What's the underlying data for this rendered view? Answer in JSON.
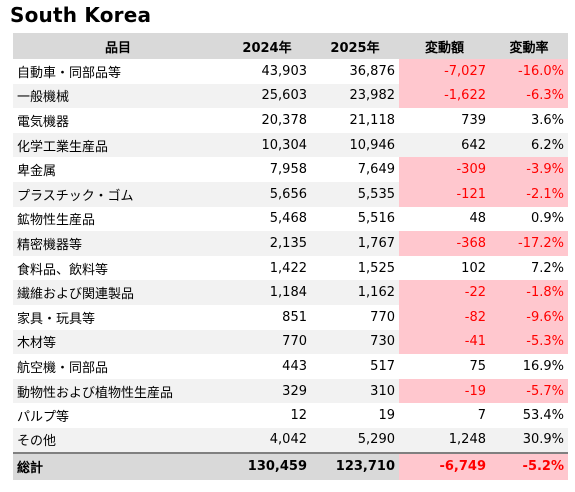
{
  "title": "South Korea",
  "columns": [
    "品目",
    "2024年",
    "2025年",
    "変動額",
    "変動率"
  ],
  "rows": [
    {
      "name": "自動車・同部品等",
      "y2024": "43,903",
      "y2025": "36,876",
      "change": "-7,027",
      "rate": "-16.0%",
      "negative": true
    },
    {
      "name": "一般機械",
      "y2024": "25,603",
      "y2025": "23,982",
      "change": "-1,622",
      "rate": "-6.3%",
      "negative": true
    },
    {
      "name": "電気機器",
      "y2024": "20,378",
      "y2025": "21,118",
      "change": "739",
      "rate": "3.6%",
      "negative": false
    },
    {
      "name": "化学工業生産品",
      "y2024": "10,304",
      "y2025": "10,946",
      "change": "642",
      "rate": "6.2%",
      "negative": false
    },
    {
      "name": "卑金属",
      "y2024": "7,958",
      "y2025": "7,649",
      "change": "-309",
      "rate": "-3.9%",
      "negative": true
    },
    {
      "name": "プラスチック・ゴム",
      "y2024": "5,656",
      "y2025": "5,535",
      "change": "-121",
      "rate": "-2.1%",
      "negative": true
    },
    {
      "name": "鉱物性生産品",
      "y2024": "5,468",
      "y2025": "5,516",
      "change": "48",
      "rate": "0.9%",
      "negative": false
    },
    {
      "name": "精密機器等",
      "y2024": "2,135",
      "y2025": "1,767",
      "change": "-368",
      "rate": "-17.2%",
      "negative": true
    },
    {
      "name": "食料品、飲料等",
      "y2024": "1,422",
      "y2025": "1,525",
      "change": "102",
      "rate": "7.2%",
      "negative": false
    },
    {
      "name": "繊維および関連製品",
      "y2024": "1,184",
      "y2025": "1,162",
      "change": "-22",
      "rate": "-1.8%",
      "negative": true
    },
    {
      "name": "家具・玩具等",
      "y2024": "851",
      "y2025": "770",
      "change": "-82",
      "rate": "-9.6%",
      "negative": true
    },
    {
      "name": "木材等",
      "y2024": "770",
      "y2025": "730",
      "change": "-41",
      "rate": "-5.3%",
      "negative": true
    },
    {
      "name": "航空機・同部品",
      "y2024": "443",
      "y2025": "517",
      "change": "75",
      "rate": "16.9%",
      "negative": false
    },
    {
      "name": "動物性および植物性生産品",
      "y2024": "329",
      "y2025": "310",
      "change": "-19",
      "rate": "-5.7%",
      "negative": true
    },
    {
      "name": "パルプ等",
      "y2024": "12",
      "y2025": "19",
      "change": "7",
      "rate": "53.4%",
      "negative": false
    },
    {
      "name": "その他",
      "y2024": "4,042",
      "y2025": "5,290",
      "change": "1,248",
      "rate": "30.9%",
      "negative": false
    }
  ],
  "total": {
    "name": "総計",
    "y2024": "130,459",
    "y2025": "123,710",
    "change": "-6,749",
    "rate": "-5.2%",
    "negative": true
  },
  "colors": {
    "header_bg": "#d9d9d9",
    "negative_text": "#ff0000",
    "negative_bg": "#ffc7ce",
    "stripe": "#f2f2f2"
  }
}
